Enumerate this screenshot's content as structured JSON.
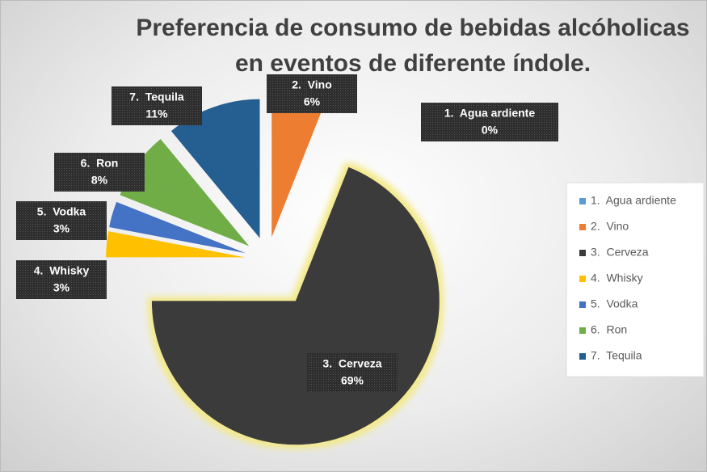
{
  "chart_data": {
    "type": "pie",
    "title": "Preferencia de consumo de bebidas alcóholicas en  eventos de diferente índole.",
    "categories": [
      "1.  Agua ardiente",
      "2.  Vino",
      "3.  Cerveza",
      "4.  Whisky",
      "5.  Vodka",
      "6.  Ron",
      "7.  Tequila"
    ],
    "values": [
      0,
      6,
      69,
      3,
      3,
      8,
      11
    ],
    "value_labels": [
      "0%",
      "6%",
      "69%",
      "3%",
      "3%",
      "8%",
      "11%"
    ],
    "colors": [
      "#5b9bd5",
      "#ed7d31",
      "#3a3a3a",
      "#ffc000",
      "#4472c4",
      "#70ad47",
      "#255e91"
    ],
    "legend": "right"
  }
}
